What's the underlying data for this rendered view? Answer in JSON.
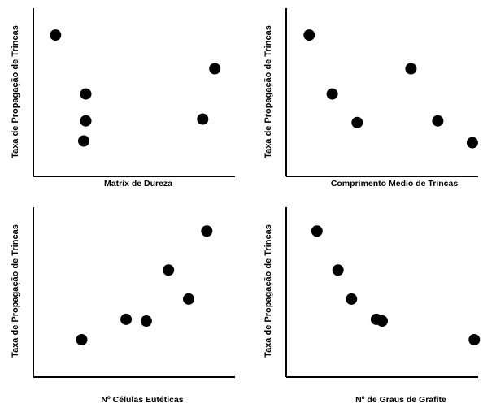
{
  "chart_data": [
    {
      "type": "scatter",
      "xlabel": "Matrix de Dureza",
      "ylabel": "Taxa de Propagação de Trincas",
      "xlim": [
        0,
        100
      ],
      "ylim": [
        0,
        100
      ],
      "grid": false,
      "points": [
        {
          "x": 11,
          "y": 84
        },
        {
          "x": 26,
          "y": 49
        },
        {
          "x": 26,
          "y": 33
        },
        {
          "x": 25,
          "y": 21
        },
        {
          "x": 90,
          "y": 64
        },
        {
          "x": 84,
          "y": 34
        }
      ]
    },
    {
      "type": "scatter",
      "xlabel": "Comprimento Medio de Trincas",
      "ylabel": "Taxa de Propagação de Trincas",
      "xlim": [
        0,
        100
      ],
      "ylim": [
        0,
        100
      ],
      "grid": false,
      "points": [
        {
          "x": 12,
          "y": 84
        },
        {
          "x": 24,
          "y": 49
        },
        {
          "x": 37,
          "y": 32
        },
        {
          "x": 65,
          "y": 64
        },
        {
          "x": 79,
          "y": 33
        },
        {
          "x": 97,
          "y": 20
        }
      ]
    },
    {
      "type": "scatter",
      "xlabel": "Nº Células Eutéticas",
      "ylabel": "Taxa de Propagação de Trincas",
      "xlim": [
        0,
        100
      ],
      "ylim": [
        0,
        100
      ],
      "grid": false,
      "points": [
        {
          "x": 24,
          "y": 22
        },
        {
          "x": 46,
          "y": 34
        },
        {
          "x": 56,
          "y": 33
        },
        {
          "x": 67,
          "y": 63
        },
        {
          "x": 77,
          "y": 46
        },
        {
          "x": 86,
          "y": 86
        }
      ]
    },
    {
      "type": "scatter",
      "xlabel": "Nº de Graus de Grafite",
      "ylabel": "Taxa de Propagação de Trincas",
      "xlim": [
        0,
        100
      ],
      "ylim": [
        0,
        100
      ],
      "grid": false,
      "points": [
        {
          "x": 16,
          "y": 86
        },
        {
          "x": 27,
          "y": 63
        },
        {
          "x": 34,
          "y": 46
        },
        {
          "x": 47,
          "y": 34
        },
        {
          "x": 50,
          "y": 33
        },
        {
          "x": 98,
          "y": 22
        }
      ]
    }
  ]
}
